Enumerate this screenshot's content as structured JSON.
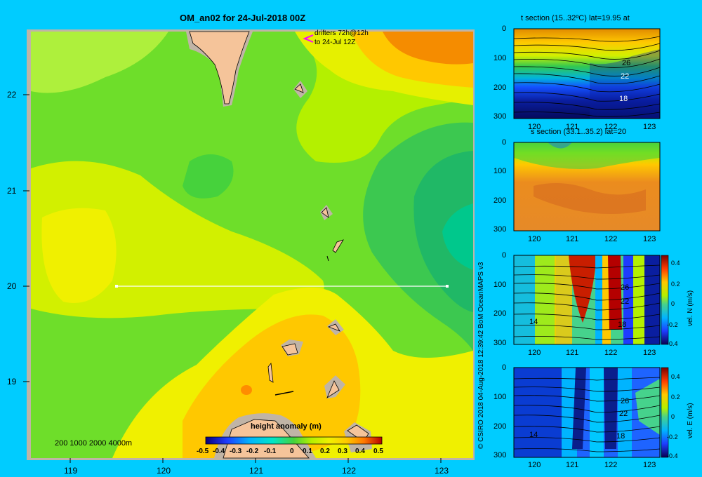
{
  "map": {
    "title": "OM_an02 for 24-Jul-2018 00Z",
    "drifters_note_line1": "drifters 72h@12h",
    "drifters_note_line2": "to 24-Jul 12Z",
    "x_ticks": [
      "119",
      "120",
      "121",
      "122",
      "123"
    ],
    "y_ticks": [
      "22",
      "21",
      "20",
      "19"
    ],
    "depth_legend": "200  1000  2000  4000m",
    "section_line": {
      "lon_start": 119.5,
      "lon_end": 123.2,
      "lat": 20.0
    },
    "colorbar": {
      "label": "height anomaly  (m)",
      "ticks": [
        "-0.5",
        "-0.4",
        "-0.3",
        "-0.2",
        "-0.1",
        "0",
        "0.1",
        "0.2",
        "0.3",
        "0.4",
        "0.5"
      ],
      "range": [
        -0.5,
        0.5
      ]
    },
    "colors": {
      "background": "#00ccff",
      "land": "#f5c49a",
      "shelf": "#c8b4a0",
      "section_line": "#ffffff",
      "drifter_marker": "#ff00ff"
    }
  },
  "credit": "© CSIRO 2018   04-Aug-2018 12:39:42 BoM OceanMAPS v3",
  "panels": [
    {
      "title": "t section (15..32ºC) lat=19.95 at",
      "y_ticks": [
        "0",
        "100",
        "200",
        "300"
      ],
      "x_ticks": [
        "120",
        "121",
        "122",
        "123"
      ],
      "contour_labels": [
        "26",
        "22",
        "18"
      ]
    },
    {
      "title": "s section (33.1..35.2) lat=20",
      "y_ticks": [
        "0",
        "100",
        "200",
        "300"
      ],
      "x_ticks": [
        "120",
        "121",
        "122",
        "123"
      ]
    },
    {
      "title": "",
      "y_ticks": [
        "0",
        "100",
        "200",
        "300"
      ],
      "x_ticks": [
        "120",
        "121",
        "122",
        "123"
      ],
      "contour_labels": [
        "26",
        "22",
        "18",
        "14"
      ],
      "colorbar_ticks": [
        "0.4",
        "0.2",
        "0",
        "-0.2",
        "-0.4"
      ],
      "colorbar_label": "vel. N  (m/s)"
    },
    {
      "title": "",
      "y_ticks": [
        "0",
        "100",
        "200",
        "300"
      ],
      "x_ticks": [
        "120",
        "121",
        "122",
        "123"
      ],
      "contour_labels": [
        "26",
        "22",
        "18",
        "14"
      ],
      "colorbar_ticks": [
        "0.4",
        "0.2",
        "0",
        "-0.2",
        "-0.4"
      ],
      "colorbar_label": "vel. E  (m/s)"
    }
  ]
}
